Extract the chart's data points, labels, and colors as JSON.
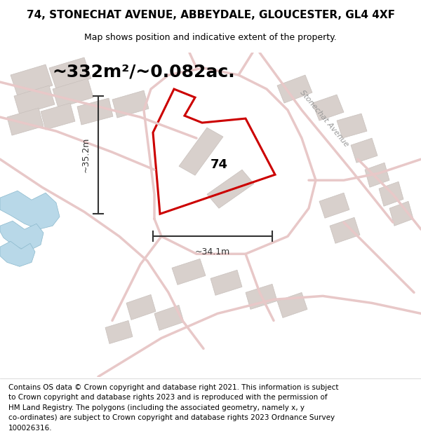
{
  "title": "74, STONECHAT AVENUE, ABBEYDALE, GLOUCESTER, GL4 4XF",
  "subtitle": "Map shows position and indicative extent of the property.",
  "area_text": "~332m²/~0.082ac.",
  "width_label": "~34.1m",
  "height_label": "~35.2m",
  "property_label": "74",
  "footer_lines": [
    "Contains OS data © Crown copyright and database right 2021. This information is subject",
    "to Crown copyright and database rights 2023 and is reproduced with the permission of",
    "HM Land Registry. The polygons (including the associated geometry, namely x, y",
    "co-ordinates) are subject to Crown copyright and database rights 2023 Ordnance Survey",
    "100026316."
  ],
  "map_bg": "#f5f1ef",
  "road_color": "#e8c8c8",
  "building_color": "#d8d0cc",
  "building_edge": "#c8c0bc",
  "water_color": "#b8d8e8",
  "highlight_color": "#cc0000",
  "dim_color": "#333333",
  "street_label_color": "#999999",
  "title_fontsize": 11,
  "subtitle_fontsize": 9,
  "area_fontsize": 18,
  "label_fontsize": 13,
  "footer_fontsize": 7.5
}
